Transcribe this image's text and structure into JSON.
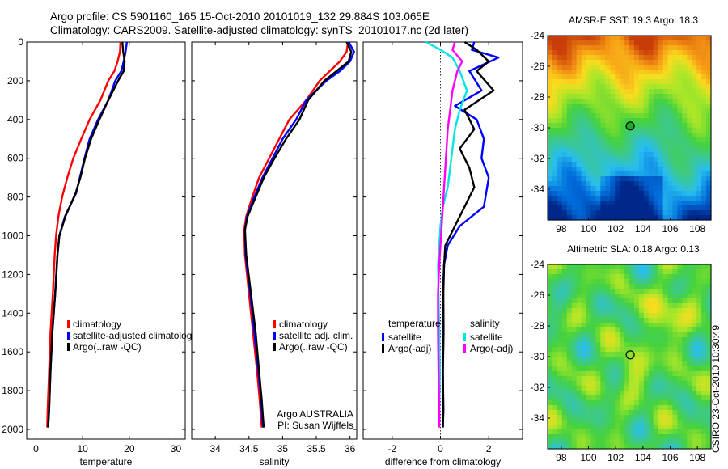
{
  "header": {
    "line1": "Argo profile: CS 5901160_165 15-Oct-2010 20101019_132 29.884S 103.065E",
    "line2": "Climatology: CARS2009. Satellite-adjusted climatology: synTS_20101017.nc (2d later)"
  },
  "credit": "CSIRO 23-Oct-2010 10:30:49",
  "chart_data": [
    {
      "type": "line",
      "xlabel": "temperature",
      "ylabel": "",
      "xlim": [
        -2,
        32
      ],
      "ylim": [
        2050,
        0
      ],
      "xticks": [
        0,
        10,
        20,
        30
      ],
      "yticks": [
        0,
        200,
        400,
        600,
        800,
        1000,
        1200,
        1400,
        1600,
        1800,
        2000
      ],
      "legend": [
        "climatology",
        "satellite-adjusted climatology",
        "Argo(..raw -QC)"
      ],
      "legend_placement": "lower-right",
      "annotations": [],
      "series": [
        {
          "name": "climatology",
          "color": "#ff0000",
          "x": [
            18.1,
            18.0,
            17.5,
            16.8,
            15.5,
            13.8,
            11.5,
            9.7,
            8.0,
            6.7,
            5.6,
            4.8,
            4.3,
            4.0,
            3.6,
            3.1,
            2.8,
            2.5,
            2.4
          ],
          "y": [
            0,
            50,
            100,
            150,
            200,
            300,
            400,
            500,
            600,
            700,
            800,
            900,
            1000,
            1100,
            1300,
            1500,
            1700,
            1900,
            1990
          ]
        },
        {
          "name": "satellite-adjusted climatology",
          "color": "#0000ff",
          "x": [
            19.5,
            19.2,
            18.8,
            18.3,
            17.0,
            15.5,
            13.3,
            11.5,
            10.4,
            9.4,
            8.6,
            6.2,
            5.0,
            4.6,
            4.1,
            3.5,
            3.1,
            2.8,
            2.6
          ],
          "y": [
            0,
            50,
            100,
            150,
            200,
            300,
            400,
            500,
            600,
            700,
            780,
            900,
            1000,
            1100,
            1300,
            1500,
            1700,
            1900,
            1990
          ]
        },
        {
          "name": "Argo(..raw -QC)",
          "color": "#000000",
          "x": [
            18.5,
            18.7,
            19.0,
            18.8,
            17.6,
            15.5,
            13.6,
            11.8,
            10.5,
            9.5,
            8.5,
            6.3,
            5.0,
            4.6,
            4.1,
            3.5,
            3.1,
            2.8,
            2.6
          ],
          "y": [
            0,
            50,
            100,
            150,
            200,
            300,
            400,
            500,
            600,
            700,
            780,
            900,
            1000,
            1100,
            1300,
            1500,
            1700,
            1900,
            1990
          ]
        }
      ]
    },
    {
      "type": "line",
      "xlabel": "salinity",
      "ylabel": "",
      "xlim": [
        33.65,
        36.1
      ],
      "ylim": [
        2050,
        0
      ],
      "xticks": [
        34,
        34.5,
        35,
        35.5,
        36
      ],
      "xticklabels": [
        "34",
        "34.5",
        "35",
        "35.5",
        "36"
      ],
      "yticks": [
        0,
        200,
        400,
        600,
        800,
        1000,
        1200,
        1400,
        1600,
        1800,
        2000
      ],
      "legend": [
        "climatology",
        "satellite adj. clim.",
        "Argo(..raw -QC)"
      ],
      "legend_placement": "lower-right",
      "annotations": [
        "Argo AUSTRALIA",
        "PI: Susan Wijffels"
      ],
      "series": [
        {
          "name": "climatology",
          "color": "#ff0000",
          "x": [
            35.97,
            35.95,
            35.85,
            35.7,
            35.55,
            35.35,
            35.1,
            34.95,
            34.8,
            34.65,
            34.55,
            34.46,
            34.43,
            34.44,
            34.5,
            34.56,
            34.62,
            34.66,
            34.68,
            34.69
          ],
          "y": [
            0,
            50,
            100,
            150,
            200,
            300,
            400,
            500,
            600,
            700,
            800,
            900,
            970,
            1100,
            1300,
            1500,
            1700,
            1850,
            1950,
            1990
          ]
        },
        {
          "name": "satellite adj. clim.",
          "color": "#0000ff",
          "x": [
            35.98,
            36.06,
            36.0,
            35.85,
            35.65,
            35.35,
            35.2,
            35.0,
            34.85,
            34.7,
            34.58,
            34.47,
            34.44,
            34.45,
            34.52,
            34.58,
            34.64,
            34.68,
            34.7,
            34.71
          ],
          "y": [
            0,
            50,
            100,
            150,
            200,
            300,
            400,
            500,
            600,
            700,
            800,
            900,
            970,
            1100,
            1300,
            1500,
            1700,
            1850,
            1950,
            1990
          ]
        },
        {
          "name": "Argo(..raw -QC)",
          "color": "#000000",
          "x": [
            35.95,
            36.02,
            35.98,
            35.8,
            35.62,
            35.38,
            35.25,
            35.05,
            34.88,
            34.72,
            34.6,
            34.48,
            34.44,
            34.46,
            34.53,
            34.6,
            34.65,
            34.69,
            34.71,
            34.72
          ],
          "y": [
            0,
            50,
            100,
            150,
            200,
            300,
            400,
            500,
            600,
            700,
            800,
            900,
            970,
            1100,
            1300,
            1500,
            1700,
            1850,
            1950,
            1990
          ]
        }
      ]
    },
    {
      "type": "line",
      "xlabel": "difference from climatology",
      "ylabel": "",
      "xlim": [
        -3.2,
        3.4
      ],
      "ylim": [
        2050,
        0
      ],
      "xticks": [
        -2,
        0,
        2
      ],
      "yticks": [
        0,
        200,
        400,
        600,
        800,
        1000,
        1200,
        1400,
        1600,
        1800,
        2000
      ],
      "legend_groups": [
        {
          "title": "temperature",
          "entries": [
            "satellite",
            "Argo(-adj)"
          ]
        },
        {
          "title": "salinity",
          "entries": [
            "satellite",
            "Argo(-adj)"
          ]
        }
      ],
      "legend_placement": "lower-left",
      "annotations": [],
      "series": [
        {
          "name": "temperature satellite",
          "color": "#0000ff",
          "x": [
            1.4,
            1.3,
            2.4,
            1.2,
            1.7,
            0.6,
            1.5,
            1.8,
            1.7,
            2.0,
            1.8,
            0.8,
            0.3,
            0.15,
            0.1,
            0.12,
            0.1,
            0.12,
            0.1
          ],
          "y": [
            0,
            40,
            80,
            150,
            250,
            330,
            400,
            500,
            600,
            700,
            850,
            950,
            1050,
            1150,
            1300,
            1500,
            1700,
            1900,
            1990
          ]
        },
        {
          "name": "temperature Argo(-adj)",
          "color": "#000000",
          "x": [
            1.0,
            1.5,
            2.0,
            1.5,
            2.2,
            1.0,
            1.4,
            0.8,
            1.2,
            1.4,
            1.0,
            0.6,
            0.2,
            0.15,
            0.12,
            0.13,
            0.1,
            0.12,
            0.1
          ],
          "y": [
            0,
            40,
            100,
            150,
            250,
            350,
            450,
            550,
            650,
            750,
            850,
            950,
            1050,
            1150,
            1300,
            1500,
            1700,
            1900,
            1990
          ]
        },
        {
          "name": "salinity satellite",
          "color": "#00e5e5",
          "x": [
            -0.6,
            0.0,
            0.5,
            0.8,
            1.1,
            0.8,
            0.6,
            0.5,
            0.4,
            0.3,
            0.1,
            0.0,
            -0.05,
            -0.1,
            -0.08,
            -0.05,
            -0.03,
            -0.05,
            -0.05
          ],
          "y": [
            0,
            40,
            80,
            150,
            250,
            350,
            450,
            550,
            650,
            750,
            850,
            950,
            1050,
            1150,
            1300,
            1500,
            1700,
            1900,
            1990
          ]
        },
        {
          "name": "salinity Argo(-adj)",
          "color": "#ff00ff",
          "x": [
            0.6,
            0.5,
            0.9,
            0.7,
            0.5,
            0.4,
            0.3,
            0.25,
            0.2,
            0.15,
            0.1,
            0.05,
            0.0,
            -0.05,
            -0.1,
            -0.1,
            -0.08,
            -0.05,
            -0.05
          ],
          "y": [
            0,
            40,
            100,
            150,
            250,
            350,
            450,
            550,
            650,
            750,
            850,
            950,
            1050,
            1150,
            1300,
            1500,
            1700,
            1900,
            1990
          ]
        }
      ]
    },
    {
      "type": "heatmap",
      "title": "AMSR-E SST: 19.3 Argo: 18.3",
      "xlim": [
        97,
        109
      ],
      "ylim": [
        -36,
        -24
      ],
      "xticks": [
        98,
        100,
        102,
        104,
        106,
        108
      ],
      "yticks": [
        -24,
        -26,
        -28,
        -30,
        -32,
        -34
      ],
      "marker": {
        "lon": 103.065,
        "lat": -29.884,
        "fill": "#22aa22"
      }
    },
    {
      "type": "heatmap",
      "title": "Altimetric SLA: 0.18 Argo: 0.13",
      "xlim": [
        97,
        109
      ],
      "ylim": [
        -36,
        -24
      ],
      "xticks": [
        98,
        100,
        102,
        104,
        106,
        108
      ],
      "yticks": [
        -24,
        -26,
        -28,
        -30,
        -32,
        -34
      ],
      "marker": {
        "lon": 103.065,
        "lat": -29.884,
        "fill": "none"
      }
    }
  ]
}
